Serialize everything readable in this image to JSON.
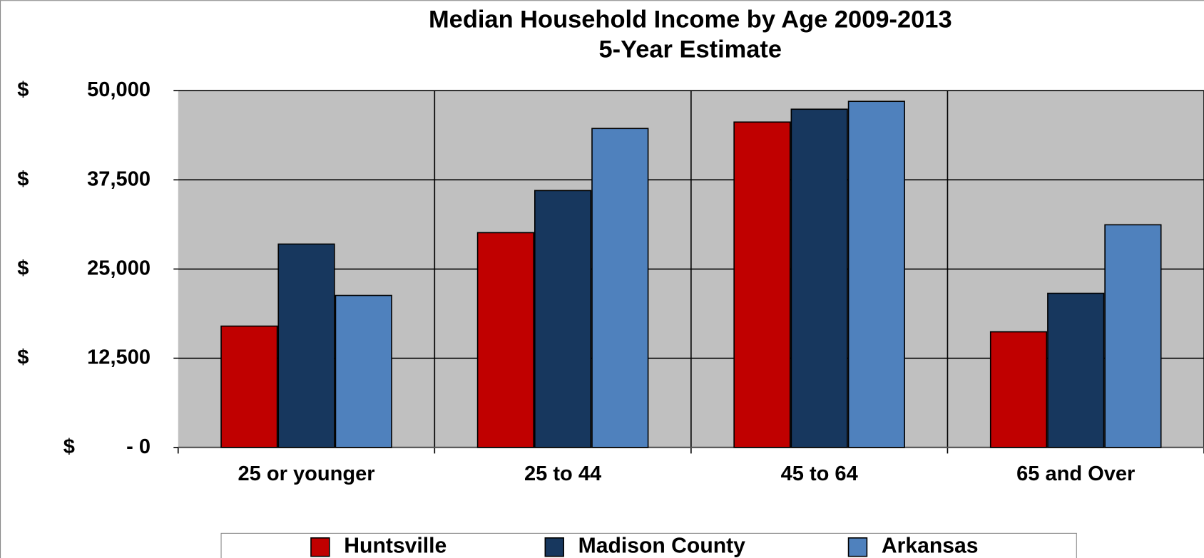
{
  "chart_data": {
    "type": "bar",
    "title": "Median Household Income by Age 2009-2013",
    "subtitle": "5-Year Estimate",
    "categories": [
      "25 or younger",
      "25 to 44",
      "45 to 64",
      "65 and Over"
    ],
    "series": [
      {
        "name": "Huntsville",
        "color": "#c00000",
        "values": [
          17000,
          30100,
          45600,
          16200
        ]
      },
      {
        "name": "Madison County",
        "color": "#17375e",
        "values": [
          28500,
          36000,
          47400,
          21600
        ]
      },
      {
        "name": "Arkansas",
        "color": "#4f81bd",
        "values": [
          21300,
          44700,
          48500,
          31200
        ]
      }
    ],
    "ylim": [
      0,
      50000
    ],
    "yticks": [
      {
        "value": 0,
        "label": "$ - 0"
      },
      {
        "value": 12500,
        "label": "$ 12,500"
      },
      {
        "value": 25000,
        "label": "$ 25,000"
      },
      {
        "value": 37500,
        "label": "$ 37,500"
      },
      {
        "value": 50000,
        "label": "$ 50,000"
      }
    ],
    "grid": true,
    "legend": "bottom"
  }
}
